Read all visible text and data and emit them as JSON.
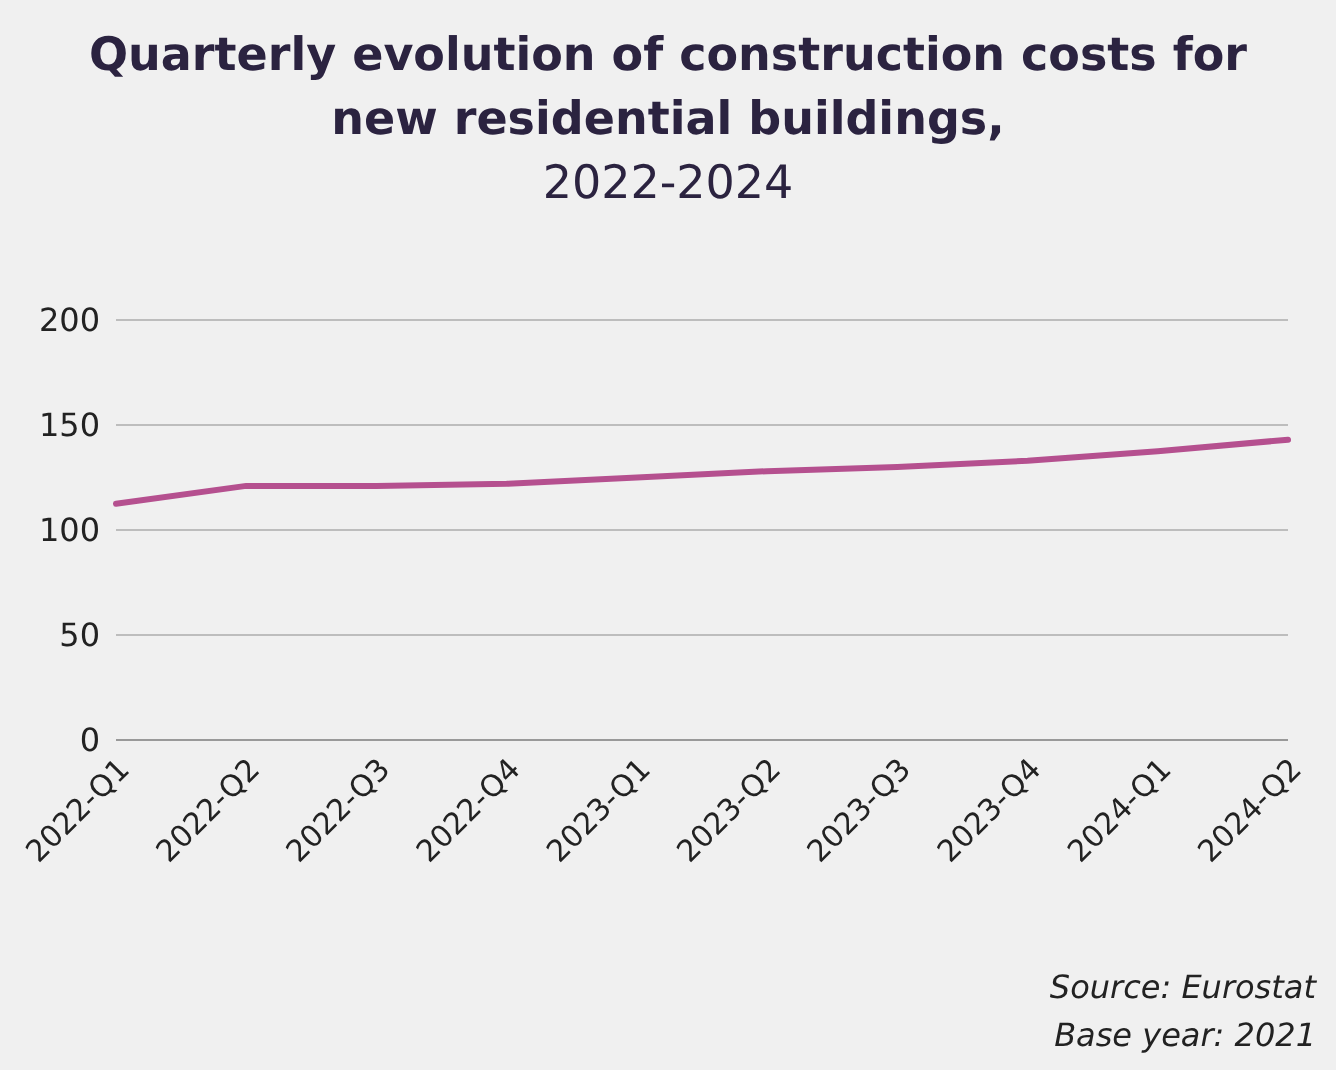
{
  "chart_data": {
    "type": "line",
    "title": "Quarterly evolution of construction costs for new residential buildings,",
    "subtitle": "2022-2024",
    "categories": [
      "2022-Q1",
      "2022-Q2",
      "2022-Q3",
      "2022-Q4",
      "2023-Q1",
      "2023-Q2",
      "2023-Q3",
      "2023-Q4",
      "2024-Q1",
      "2024-Q2"
    ],
    "series": [
      {
        "color": "#b5508f",
        "values": [
          112.5,
          121,
          121,
          122,
          125,
          128,
          130,
          133,
          137.5,
          143
        ]
      }
    ],
    "ylim": [
      0,
      200
    ],
    "yticks": [
      0,
      50,
      100,
      150,
      200
    ],
    "grid": "y",
    "legend": false,
    "marker": "none",
    "line_style": "solid",
    "annotations": [
      "Source: Eurostat",
      "Base year: 2021"
    ]
  }
}
